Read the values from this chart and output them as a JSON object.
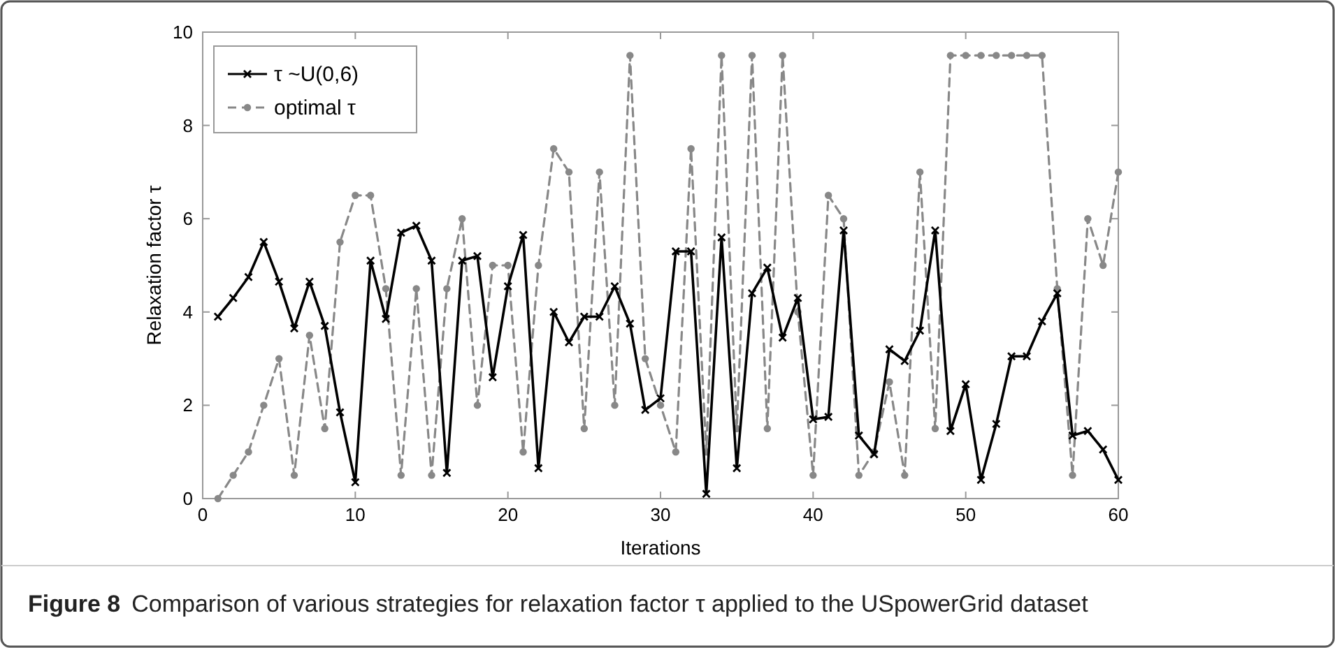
{
  "chart_data": {
    "type": "line",
    "xlabel": "Iterations",
    "ylabel": "Relaxation factor τ",
    "x": [
      1,
      2,
      3,
      4,
      5,
      6,
      7,
      8,
      9,
      10,
      11,
      12,
      13,
      14,
      15,
      16,
      17,
      18,
      19,
      20,
      21,
      22,
      23,
      24,
      25,
      26,
      27,
      28,
      29,
      30,
      31,
      32,
      33,
      34,
      35,
      36,
      37,
      38,
      39,
      40,
      41,
      42,
      43,
      44,
      45,
      46,
      47,
      48,
      49,
      50,
      51,
      52,
      53,
      54,
      55,
      56,
      57,
      58,
      59,
      60
    ],
    "series": [
      {
        "name": "τ ~U(0,6)",
        "color": "#000000",
        "marker": "cross",
        "line_style": "solid",
        "values": [
          3.9,
          4.3,
          4.75,
          5.5,
          4.65,
          3.65,
          4.65,
          3.7,
          1.85,
          0.35,
          5.1,
          3.85,
          5.7,
          5.85,
          5.1,
          0.55,
          5.1,
          5.2,
          2.6,
          4.55,
          5.65,
          0.65,
          4.0,
          3.35,
          3.9,
          3.9,
          4.55,
          3.75,
          1.9,
          2.15,
          5.3,
          5.3,
          0.1,
          5.6,
          0.65,
          4.4,
          4.95,
          3.45,
          4.3,
          1.7,
          1.75,
          5.75,
          1.35,
          0.95,
          3.2,
          2.95,
          3.6,
          5.75,
          1.45,
          2.45,
          0.4,
          1.6,
          3.05,
          3.05,
          3.8,
          4.4,
          1.35,
          1.45,
          1.05,
          0.4
        ]
      },
      {
        "name": "optimal τ",
        "color": "#888888",
        "marker": "circle",
        "line_style": "dashed",
        "values": [
          0,
          0.5,
          1,
          2,
          3,
          0.5,
          3.5,
          1.5,
          5.5,
          6.5,
          6.5,
          4.5,
          0.5,
          4.5,
          0.5,
          4.5,
          6,
          2,
          5,
          5,
          1,
          5,
          7.5,
          7,
          1.5,
          7,
          2,
          9.5,
          3,
          2,
          1,
          7.5,
          1,
          9.5,
          1.5,
          9.5,
          1.5,
          9.5,
          4,
          0.5,
          6.5,
          6,
          0.5,
          1,
          2.5,
          0.5,
          7,
          1.5,
          9.5,
          9.5,
          9.5,
          9.5,
          9.5,
          9.5,
          9.5,
          4.5,
          0.5,
          6,
          5,
          7
        ]
      }
    ],
    "xlim": [
      0,
      60
    ],
    "xticks": [
      0,
      10,
      20,
      30,
      40,
      50,
      60
    ],
    "ylim": [
      0,
      10
    ],
    "yticks": [
      0,
      2,
      4,
      6,
      8,
      10
    ],
    "grid": false,
    "legend": "top left",
    "annotations": [
      "Figure 8",
      "Comparison of various strategies for relaxation factor τ applied to the USpowerGrid dataset"
    ]
  }
}
